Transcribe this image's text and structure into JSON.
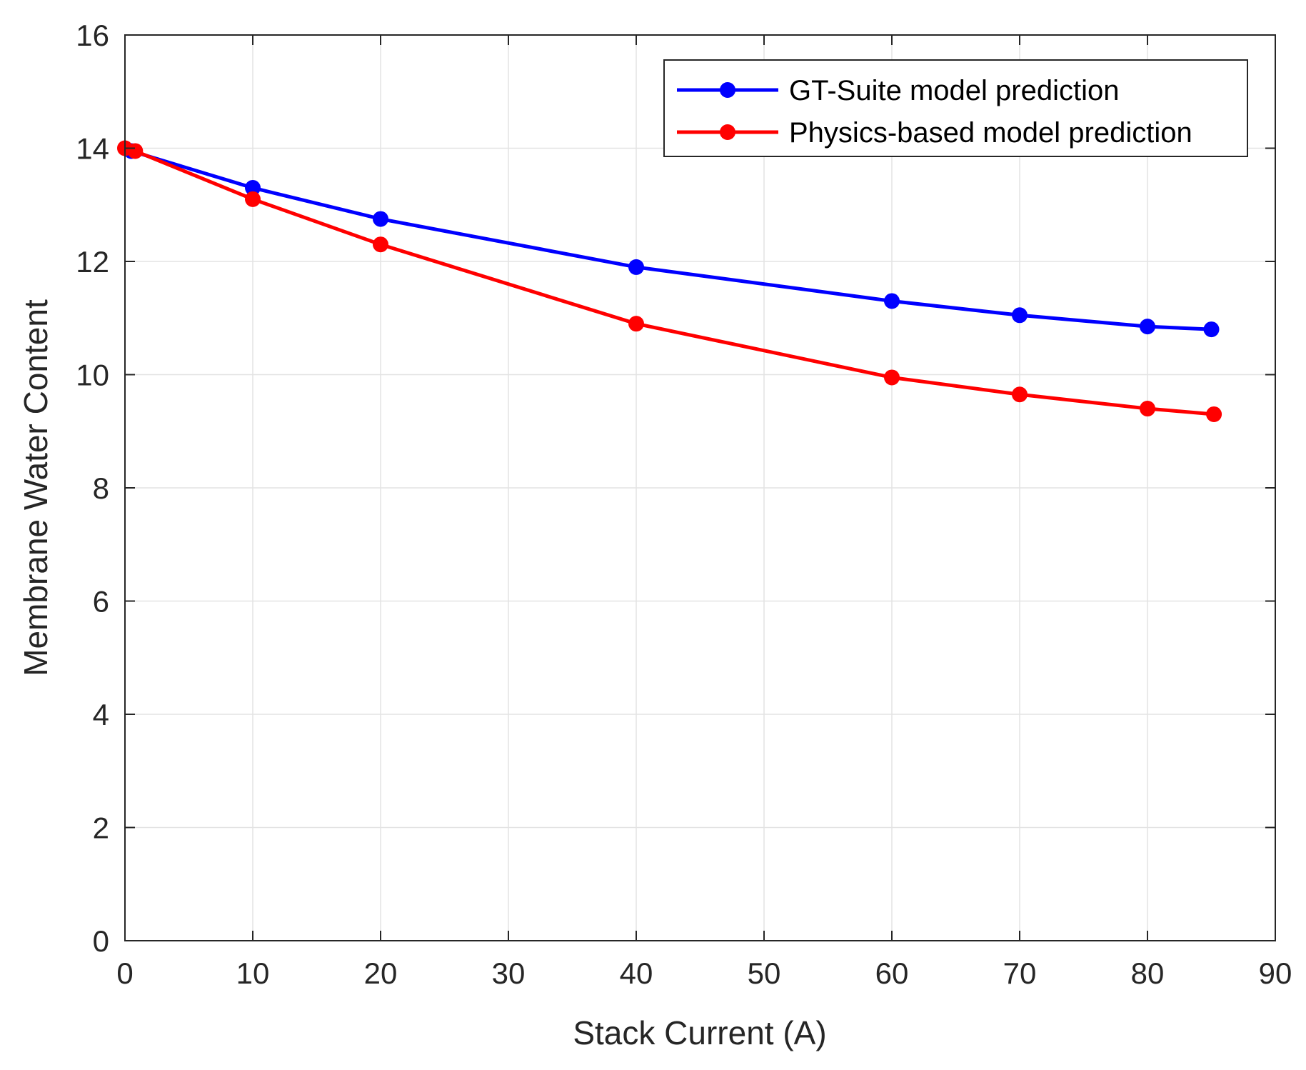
{
  "chart_data": {
    "type": "line",
    "title": "",
    "xlabel": "Stack Current (A)",
    "ylabel": "Membrane Water Content",
    "xlim": [
      0,
      90
    ],
    "ylim": [
      0,
      16
    ],
    "xticks": [
      0,
      10,
      20,
      30,
      40,
      50,
      60,
      70,
      80,
      90
    ],
    "yticks": [
      0,
      2,
      4,
      6,
      8,
      10,
      12,
      14,
      16
    ],
    "grid": true,
    "legend_position": "top-right",
    "series": [
      {
        "name": "GT-Suite model prediction",
        "color": "#0000ff",
        "x": [
          0.5,
          10,
          20,
          40,
          60,
          70,
          80,
          85
        ],
        "y": [
          13.95,
          13.3,
          12.75,
          11.9,
          11.3,
          11.05,
          10.85,
          10.8
        ]
      },
      {
        "name": "Physics-based model prediction",
        "color": "#ff0000",
        "x": [
          0,
          0.8,
          10,
          20,
          40,
          60,
          70,
          80,
          85.2
        ],
        "y": [
          14.0,
          13.95,
          13.1,
          12.3,
          10.9,
          9.95,
          9.65,
          9.4,
          9.3
        ]
      }
    ]
  }
}
